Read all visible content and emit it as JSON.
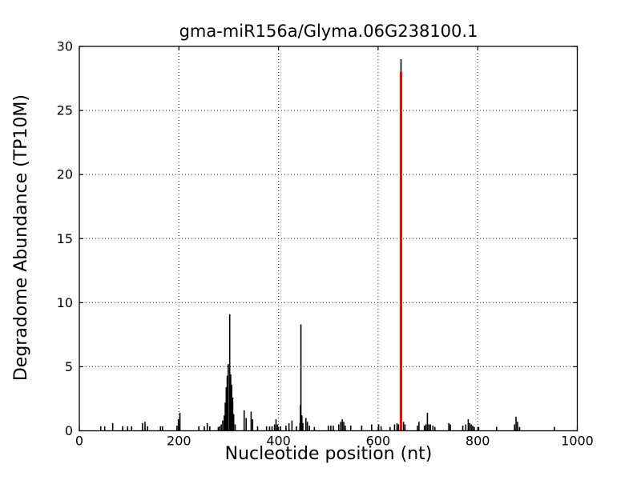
{
  "figure": {
    "background": "#ffffff",
    "kind": "degradome t-plot (matplotlib-style static chart)"
  },
  "chart_data": {
    "type": "bar",
    "subtype": "stem-spikes (degradome t-plot)",
    "title": "gma-miR156a/Glyma.06G238100.1",
    "xlabel": "Nucleotide position (nt)",
    "ylabel": "Degradome Abundance (TP10M)",
    "xlim": [
      0,
      1000
    ],
    "ylim": [
      0,
      30
    ],
    "xticks": [
      0,
      200,
      400,
      600,
      800,
      1000
    ],
    "yticks": [
      0,
      5,
      10,
      15,
      20,
      25,
      30
    ],
    "grid": {
      "show": true,
      "style": "dotted",
      "color": "#2a2a2a",
      "at_xticks": [
        200,
        400,
        600,
        800
      ],
      "at_yticks": [
        5,
        10,
        15,
        20,
        25
      ]
    },
    "legend": {
      "show": false
    },
    "series": [
      {
        "name": "degradome-signal",
        "color": "#000000",
        "line_width": 1.6,
        "marker_name": "spike-bar",
        "points": [
          [
            43,
            0.35
          ],
          [
            51,
            0.35
          ],
          [
            67,
            0.6
          ],
          [
            87,
            0.35
          ],
          [
            97,
            0.35
          ],
          [
            105,
            0.35
          ],
          [
            127,
            0.6
          ],
          [
            132,
            0.7
          ],
          [
            137,
            0.35
          ],
          [
            163,
            0.35
          ],
          [
            167,
            0.35
          ],
          [
            196,
            0.4
          ],
          [
            199,
            0.9
          ],
          [
            202,
            1.4
          ],
          [
            240,
            0.35
          ],
          [
            251,
            0.35
          ],
          [
            257,
            0.6
          ],
          [
            262,
            0.35
          ],
          [
            279,
            0.3
          ],
          [
            282,
            0.35
          ],
          [
            285,
            0.5
          ],
          [
            288,
            0.8
          ],
          [
            291,
            1.2
          ],
          [
            293,
            2.2
          ],
          [
            295,
            3.4
          ],
          [
            297,
            4.3
          ],
          [
            299,
            5.2
          ],
          [
            302,
            9.1
          ],
          [
            304,
            4.4
          ],
          [
            306,
            3.6
          ],
          [
            308,
            2.6
          ],
          [
            310,
            1.3
          ],
          [
            313,
            0.5
          ],
          [
            331,
            1.6
          ],
          [
            335,
            1.0
          ],
          [
            345,
            1.5
          ],
          [
            348,
            0.9
          ],
          [
            358,
            0.35
          ],
          [
            376,
            0.35
          ],
          [
            382,
            0.35
          ],
          [
            387,
            0.35
          ],
          [
            392,
            0.5
          ],
          [
            395,
            0.9
          ],
          [
            398,
            0.5
          ],
          [
            404,
            0.35
          ],
          [
            415,
            0.4
          ],
          [
            421,
            0.6
          ],
          [
            427,
            0.8
          ],
          [
            436,
            0.35
          ],
          [
            443,
            0.6
          ],
          [
            444,
            2.0
          ],
          [
            445,
            8.3
          ],
          [
            447,
            1.2
          ],
          [
            449,
            0.6
          ],
          [
            455,
            1.0
          ],
          [
            458,
            0.7
          ],
          [
            462,
            0.4
          ],
          [
            472,
            0.3
          ],
          [
            500,
            0.4
          ],
          [
            505,
            0.4
          ],
          [
            510,
            0.4
          ],
          [
            521,
            0.5
          ],
          [
            525,
            0.7
          ],
          [
            528,
            0.9
          ],
          [
            531,
            0.7
          ],
          [
            534,
            0.4
          ],
          [
            545,
            0.4
          ],
          [
            567,
            0.4
          ],
          [
            587,
            0.5
          ],
          [
            601,
            0.5
          ],
          [
            606,
            0.35
          ],
          [
            624,
            0.3
          ],
          [
            633,
            0.5
          ],
          [
            638,
            0.6
          ],
          [
            641,
            0.5
          ],
          [
            646,
            29.0
          ],
          [
            651,
            0.7
          ],
          [
            654,
            0.5
          ],
          [
            679,
            0.4
          ],
          [
            682,
            0.7
          ],
          [
            693,
            0.4
          ],
          [
            696,
            0.5
          ],
          [
            699,
            1.4
          ],
          [
            702,
            0.5
          ],
          [
            705,
            0.5
          ],
          [
            710,
            0.4
          ],
          [
            714,
            0.3
          ],
          [
            742,
            0.6
          ],
          [
            745,
            0.5
          ],
          [
            770,
            0.4
          ],
          [
            776,
            0.5
          ],
          [
            781,
            0.9
          ],
          [
            784,
            0.6
          ],
          [
            787,
            0.5
          ],
          [
            790,
            0.4
          ],
          [
            793,
            0.3
          ],
          [
            802,
            0.3
          ],
          [
            838,
            0.3
          ],
          [
            874,
            0.5
          ],
          [
            877,
            1.1
          ],
          [
            880,
            0.7
          ],
          [
            884,
            0.3
          ],
          [
            954,
            0.3
          ]
        ]
      },
      {
        "name": "mirna-cleavage-site",
        "color": "#ff0000",
        "line_width": 3,
        "marker_name": "cleavage-site-marker",
        "points": [
          [
            646,
            28.0
          ]
        ]
      }
    ]
  },
  "colors": {
    "background": "#ffffff",
    "axis": "#000000",
    "grid": "#2a2a2a",
    "signal": "#000000",
    "highlight": "#ff0000"
  }
}
